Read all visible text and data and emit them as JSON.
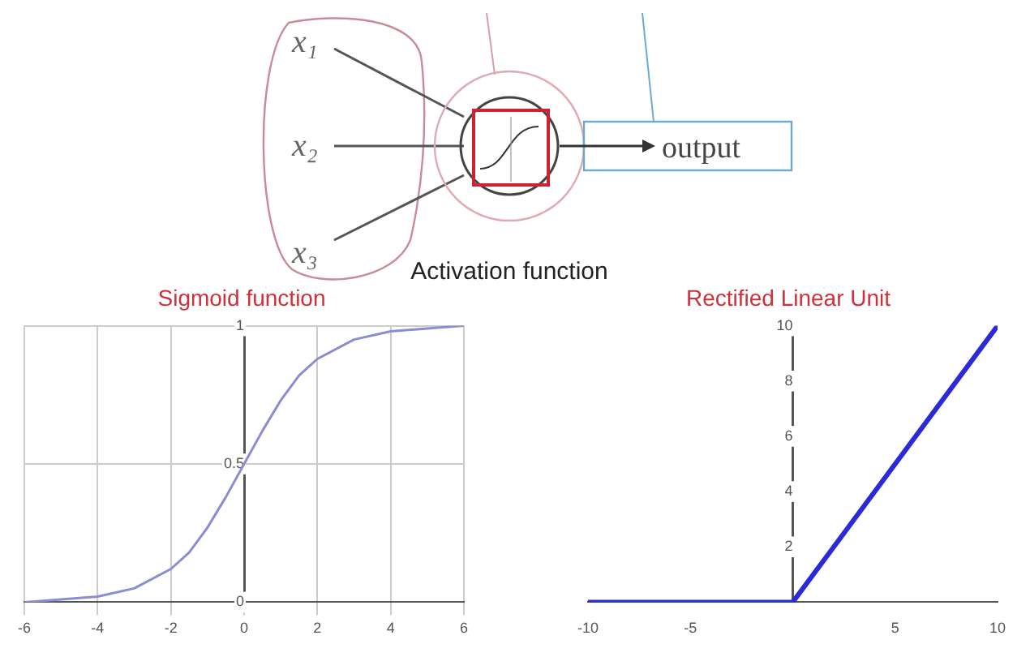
{
  "chart_data": [
    {
      "type": "other",
      "annotations": [
        "x₁",
        "x₂",
        "x₃",
        "output",
        "Activation function"
      ]
    },
    {
      "type": "line",
      "title": "Sigmoid function",
      "x": [
        -6,
        -5,
        -4,
        -3,
        -2,
        -1.5,
        -1,
        -0.5,
        0,
        0.5,
        1,
        1.5,
        2,
        3,
        4,
        5,
        6
      ],
      "xlim": [
        -6,
        6
      ],
      "ylim": [
        0,
        1
      ],
      "xticks": [
        -6,
        -4,
        -2,
        0,
        2,
        4,
        6
      ],
      "yticks": [
        0,
        0.5,
        1
      ],
      "grid": true,
      "series": [
        {
          "color": "#8c8cd0",
          "values": [
            0,
            0.01,
            0.02,
            0.05,
            0.12,
            0.18,
            0.27,
            0.38,
            0.5,
            0.62,
            0.73,
            0.82,
            0.88,
            0.95,
            0.98,
            0.99,
            1
          ]
        }
      ]
    },
    {
      "type": "line",
      "title": "Rectified Linear Unit",
      "x": [
        -10,
        0,
        10
      ],
      "xlim": [
        -10,
        10
      ],
      "ylim": [
        0,
        10
      ],
      "xticks": [
        -10,
        -5,
        5,
        10
      ],
      "yticks": [
        2,
        4,
        6,
        8,
        10
      ],
      "grid": false,
      "series": [
        {
          "color": "#2a2ad8",
          "values": [
            0,
            0,
            10
          ]
        }
      ]
    }
  ]
}
